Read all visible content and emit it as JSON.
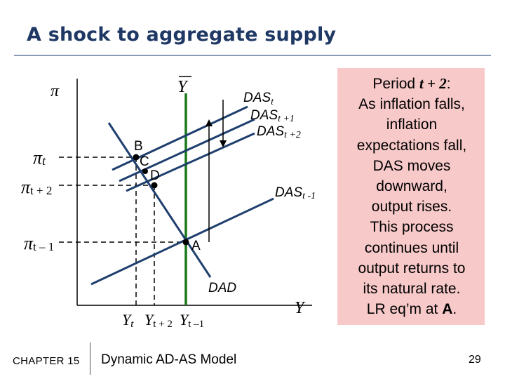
{
  "slide": {
    "title": "A shock to aggregate supply",
    "chapter": "CHAPTER 15",
    "chapter_title": "Dynamic AD-AS Model",
    "page_number": "29"
  },
  "diagram": {
    "y_axis_label": "π",
    "x_axis_label": "Y",
    "ybar_label": "Y",
    "ytick_pi_t": "π",
    "ytick_pi_t_sub": "t",
    "ytick_pi_t2": "π",
    "ytick_pi_t2_sub": "t + 2",
    "ytick_pi_t1": "π",
    "ytick_pi_t1_sub": "t – 1",
    "xtick_yt": "Y",
    "xtick_yt_sub": "t",
    "xtick_yt2": "Y",
    "xtick_yt2_sub": "t + 2",
    "xtick_yt1": "Y",
    "xtick_yt1_sub": "t –1",
    "curve_das_t": "DAS",
    "curve_das_t_sub": "t",
    "curve_das_t1": "DAS",
    "curve_das_t1_sub": "t +1",
    "curve_das_t2": "DAS",
    "curve_das_t2_sub": "t +2",
    "curve_das_tm1": "DAS",
    "curve_das_tm1_sub": "t -1",
    "curve_dad": "DAD",
    "point_a": "A",
    "point_b": "B",
    "point_c": "C",
    "point_d": "D",
    "colors": {
      "lrs": "#1a7a1a",
      "curves": "#1f3f6e",
      "arrows": "#000000"
    }
  },
  "note": {
    "line1_pre": "Period ",
    "line1_emph": "t + 2",
    "line1_post": ":",
    "line2": "As inflation falls,",
    "line3": "inflation",
    "line4": "expectations fall,",
    "line5": "DAS moves",
    "line6": "downward,",
    "line7": "output rises.",
    "line8": "This process",
    "line9": "continues until",
    "line10": "output returns to",
    "line11": "its natural rate.",
    "line12_pre": "LR eq’m at ",
    "line12_emph": "A",
    "line12_post": "."
  }
}
